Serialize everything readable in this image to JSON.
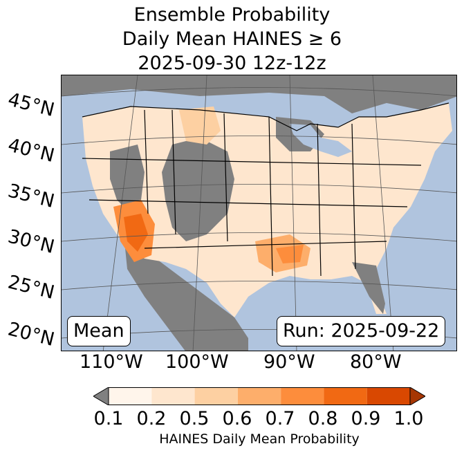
{
  "title": {
    "line1": "Ensemble Probability",
    "line2": "Daily Mean HAINES ≥ 6",
    "line3": "2025-09-30 12z-12z"
  },
  "map": {
    "lat_labels": [
      "45°N",
      "40°N",
      "35°N",
      "30°N",
      "25°N",
      "20°N"
    ],
    "lon_labels": [
      "110°W",
      "100°W",
      "90°W",
      "80°W"
    ],
    "colors": {
      "ocean": "#b0c4de",
      "no_data": "#808080",
      "land_outside": "#f5f5f5"
    }
  },
  "boxes": {
    "mean_label": "Mean",
    "run_label": "Run: 2025-09-22"
  },
  "colorbar": {
    "ticks": [
      "0.1",
      "0.2",
      "0.5",
      "0.6",
      "0.7",
      "0.8",
      "0.9",
      "1.0"
    ],
    "colors": [
      "#fff5eb",
      "#fee6ce",
      "#fdd0a2",
      "#fdae6b",
      "#fd8d3c",
      "#f16913",
      "#d94801"
    ],
    "under_color": "#808080",
    "over_color": "#a63603",
    "label": "HAINES Daily Mean Probability"
  }
}
